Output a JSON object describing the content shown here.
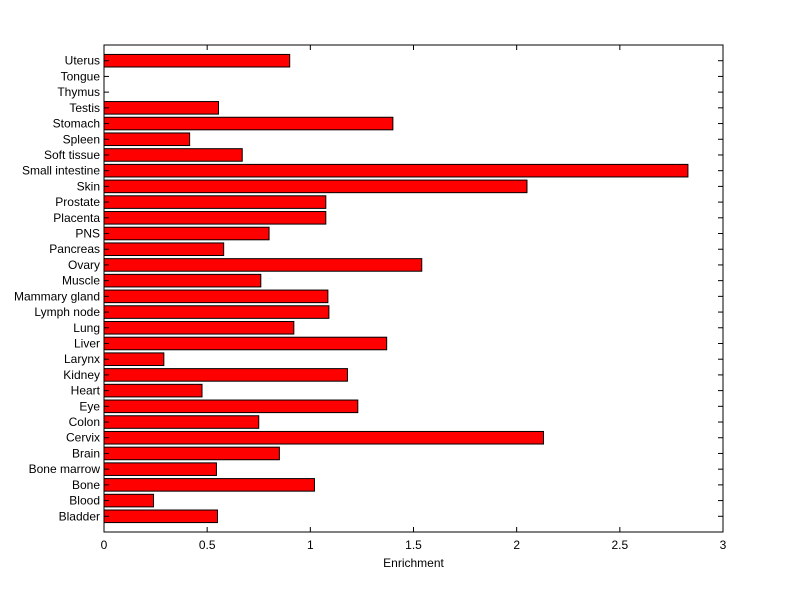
{
  "chart_data": {
    "type": "bar",
    "orientation": "horizontal",
    "title": "",
    "xlabel": "Enrichment",
    "ylabel": "",
    "xlim": [
      0,
      3
    ],
    "xticks": [
      0,
      0.5,
      1,
      1.5,
      2,
      2.5,
      3
    ],
    "xtick_labels": [
      "0",
      "0.5",
      "1",
      "1.5",
      "2",
      "2.5",
      "3"
    ],
    "grid": false,
    "legend": "none",
    "bar_color": "#ff0000",
    "bar_edge_color": "#000000",
    "categories": [
      "Bladder",
      "Blood",
      "Bone",
      "Bone marrow",
      "Brain",
      "Cervix",
      "Colon",
      "Eye",
      "Heart",
      "Kidney",
      "Larynx",
      "Liver",
      "Lung",
      "Lymph node",
      "Mammary gland",
      "Muscle",
      "Ovary",
      "Pancreas",
      "PNS",
      "Placenta",
      "Prostate",
      "Skin",
      "Small intestine",
      "Soft tissue",
      "Spleen",
      "Stomach",
      "Testis",
      "Thymus",
      "Tongue",
      "Uterus"
    ],
    "values": [
      0.55,
      0.24,
      1.02,
      0.545,
      0.85,
      2.13,
      0.75,
      1.23,
      0.475,
      1.18,
      0.29,
      1.37,
      0.92,
      1.09,
      1.085,
      0.76,
      1.54,
      0.58,
      0.8,
      1.075,
      1.075,
      2.05,
      2.83,
      0.67,
      0.415,
      1.4,
      0.555,
      0,
      0,
      0.9
    ]
  }
}
